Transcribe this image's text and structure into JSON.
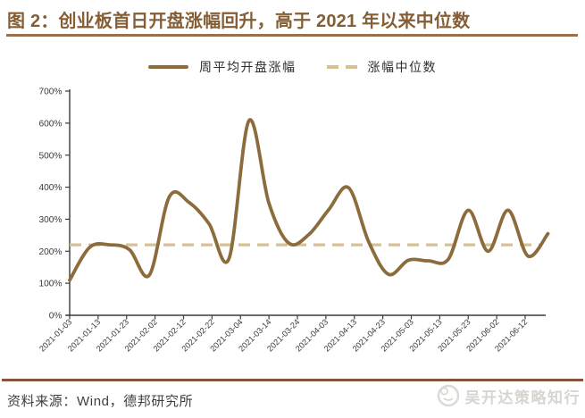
{
  "title": "图 2：创业板首日开盘涨幅回升，高于 2021 年以来中位数",
  "legend": [
    {
      "label": "周平均开盘涨幅",
      "style": "solid"
    },
    {
      "label": "涨幅中位数",
      "style": "dashed"
    }
  ],
  "source": "资料来源：Wind，德邦研究所",
  "watermark": "吴开达策略知行",
  "colors": {
    "title": "#855e35",
    "top_rule": "#9a6f4b",
    "bottom_rule": "#84543c",
    "axis": "#3b3b3b",
    "series_line": "#8c6c3c",
    "median_line": "#d7c193",
    "watermark": "#d8d5d0"
  },
  "chart_data": {
    "type": "line",
    "title": "图 2：创业板首日开盘涨幅回升，高于 2021 年以来中位数",
    "xlabel": "",
    "ylabel": "",
    "ylim": [
      0,
      700
    ],
    "grid": false,
    "legend_position": "top",
    "x": [
      "2021-01-03",
      "2021-01-10",
      "2021-01-17",
      "2021-01-24",
      "2021-01-31",
      "2021-02-07",
      "2021-02-14",
      "2021-02-21",
      "2021-02-28",
      "2021-03-07",
      "2021-03-14",
      "2021-03-21",
      "2021-03-28",
      "2021-04-04",
      "2021-04-11",
      "2021-04-18",
      "2021-04-25",
      "2021-05-02",
      "2021-05-09",
      "2021-05-16",
      "2021-05-23",
      "2021-05-30",
      "2021-06-06",
      "2021-06-13",
      "2021-06-20"
    ],
    "series": [
      {
        "name": "周平均开盘涨幅",
        "style": "solid",
        "color": "#8c6c3c",
        "unit": "%",
        "values": [
          110,
          212,
          220,
          205,
          126,
          370,
          352,
          285,
          178,
          608,
          350,
          225,
          252,
          330,
          398,
          230,
          128,
          172,
          170,
          175,
          328,
          200,
          328,
          185,
          255
        ]
      },
      {
        "name": "涨幅中位数",
        "style": "dashed",
        "color": "#d7c193",
        "unit": "%",
        "constant_value": 220
      }
    ],
    "x_tick_labels": [
      "2021-01-03",
      "2021-01-13",
      "2021-01-23",
      "2021-02-02",
      "2021-02-12",
      "2021-02-22",
      "2021-03-04",
      "2021-03-14",
      "2021-03-24",
      "2021-04-03",
      "2021-04-13",
      "2021-04-23",
      "2021-05-03",
      "2021-05-13",
      "2021-05-23",
      "2021-06-02",
      "2021-06-12"
    ],
    "y_tick_labels": [
      "0%",
      "100%",
      "200%",
      "300%",
      "400%",
      "500%",
      "600%",
      "700%"
    ]
  }
}
